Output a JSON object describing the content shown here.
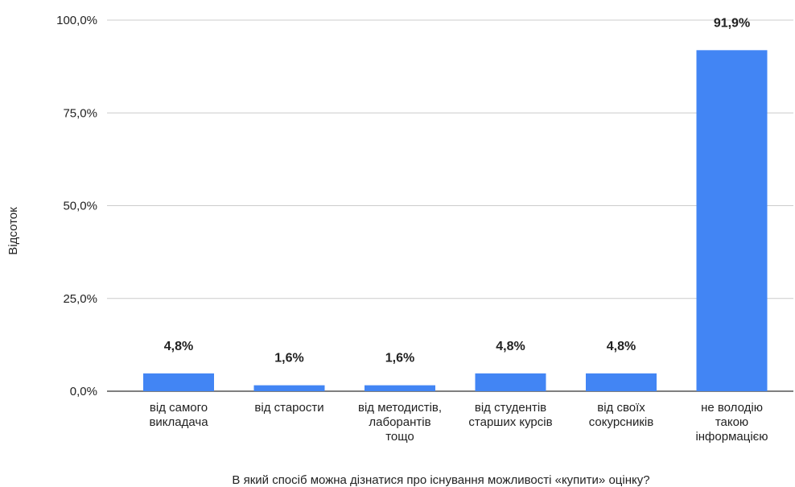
{
  "chart_data": {
    "type": "bar",
    "categories": [
      [
        "від самого",
        "викладача"
      ],
      [
        "від старости"
      ],
      [
        "від методистів,",
        "лаборантів",
        "тощо"
      ],
      [
        "від студентів",
        "старших курсів"
      ],
      [
        "від своїх",
        "сокурсників"
      ],
      [
        "не володію",
        "такою",
        "інформацією"
      ]
    ],
    "values": [
      4.8,
      1.6,
      1.6,
      4.8,
      4.8,
      91.9
    ],
    "data_labels": [
      "4,8%",
      "1,6%",
      "1,6%",
      "4,8%",
      "4,8%",
      "91,9%"
    ],
    "yticks": [
      0,
      25,
      50,
      75,
      100
    ],
    "ytick_labels": [
      "0,0%",
      "25,0%",
      "50,0%",
      "75,0%",
      "100,0%"
    ],
    "ylim": [
      0,
      100
    ],
    "xlabel": "В який спосіб можна дізнатися про існування можливості «купити» оцінку?",
    "ylabel": "Відсоток",
    "bar_color": "#4285f4",
    "grid": true,
    "legend": "none"
  }
}
